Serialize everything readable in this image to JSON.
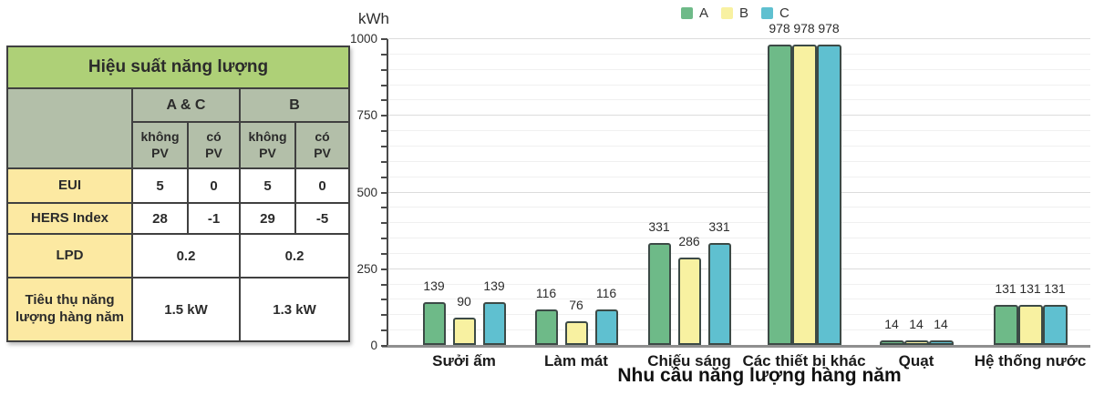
{
  "table": {
    "title": "Hiệu suất năng lượng",
    "col_groups": [
      "A & C",
      "B"
    ],
    "sub_cols": [
      {
        "top": "không",
        "bottom": "PV"
      },
      {
        "top": "có",
        "bottom": "PV"
      },
      {
        "top": "không",
        "bottom": "PV"
      },
      {
        "top": "có",
        "bottom": "PV"
      }
    ],
    "rows": [
      {
        "label": "EUI",
        "values": [
          "5",
          "0",
          "5",
          "0"
        ]
      },
      {
        "label": "HERS Index",
        "values": [
          "28",
          "-1",
          "29",
          "-5"
        ]
      },
      {
        "label": "LPD",
        "values": [
          "0.2",
          "0.2"
        ]
      },
      {
        "label": "Tiêu thụ năng lượng hàng năm",
        "values": [
          "1.5 kW",
          "1.3 kW"
        ]
      }
    ],
    "colors": {
      "header_green": "#aed077",
      "subheader_sage": "#b3bfa9",
      "label_yellow": "#fce9a2",
      "border": "#404040"
    }
  },
  "chart_data": {
    "type": "bar",
    "title": "",
    "xlabel": "Nhu cầu năng lượng hàng năm",
    "ylabel": "kWh",
    "ylim": [
      0,
      1000
    ],
    "yticks": [
      0,
      250,
      500,
      750,
      1000
    ],
    "minor_grid_step": 50,
    "grid": true,
    "legend_position": "top",
    "categories": [
      "Sưởi ấm",
      "Làm mát",
      "Chiếu sáng",
      "Các thiết bị khác",
      "Quạt",
      "Hệ thống nước"
    ],
    "series": [
      {
        "name": "A",
        "color": "#6eba88",
        "values": [
          139,
          116,
          331,
          978,
          14,
          131
        ]
      },
      {
        "name": "B",
        "color": "#f8f1a1",
        "values": [
          90,
          76,
          286,
          978,
          14,
          131
        ]
      },
      {
        "name": "C",
        "color": "#5fc0d0",
        "values": [
          139,
          116,
          331,
          978,
          14,
          131
        ]
      }
    ],
    "bar_outline_color": "#3c4a46"
  }
}
